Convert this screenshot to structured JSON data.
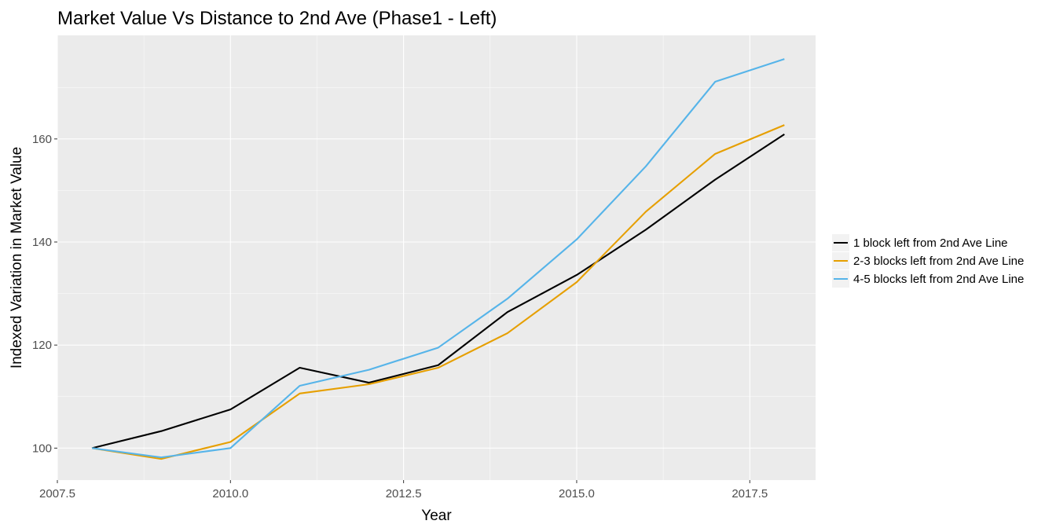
{
  "chart_data": {
    "type": "line",
    "title": "Market Value Vs Distance to 2nd Ave (Phase1 - Left)",
    "xlabel": "Year",
    "ylabel": "Indexed Variation in Market Value",
    "xlim": [
      2007.5,
      2018.45
    ],
    "ylim": [
      93.8,
      180.1
    ],
    "x_ticks": [
      2007.5,
      2010.0,
      2012.5,
      2015.0,
      2017.5
    ],
    "x_tick_labels": [
      "2007.5",
      "2010.0",
      "2012.5",
      "2015.0",
      "2017.5"
    ],
    "y_ticks": [
      100,
      120,
      140,
      160
    ],
    "y_tick_labels": [
      "100",
      "120",
      "140",
      "160"
    ],
    "grid": true,
    "legend_position": "right",
    "x": [
      2008,
      2009,
      2010,
      2011,
      2012,
      2013,
      2014,
      2015,
      2016,
      2017,
      2018
    ],
    "series": [
      {
        "name": "1 block left from 2nd Ave Line",
        "color": "#000000",
        "values": [
          100.0,
          103.3,
          107.5,
          115.6,
          112.7,
          116.1,
          126.4,
          133.6,
          142.4,
          152.1,
          160.9
        ]
      },
      {
        "name": "2-3 blocks left from 2nd Ave Line",
        "color": "#E69F00",
        "values": [
          100.0,
          97.9,
          101.2,
          110.6,
          112.4,
          115.6,
          122.3,
          132.2,
          145.9,
          157.1,
          162.7
        ]
      },
      {
        "name": "4-5 blocks left from 2nd Ave Line",
        "color": "#56B4E9",
        "values": [
          100.0,
          98.2,
          100.0,
          112.1,
          115.2,
          119.5,
          129.0,
          140.5,
          154.7,
          171.1,
          175.5
        ]
      }
    ]
  }
}
